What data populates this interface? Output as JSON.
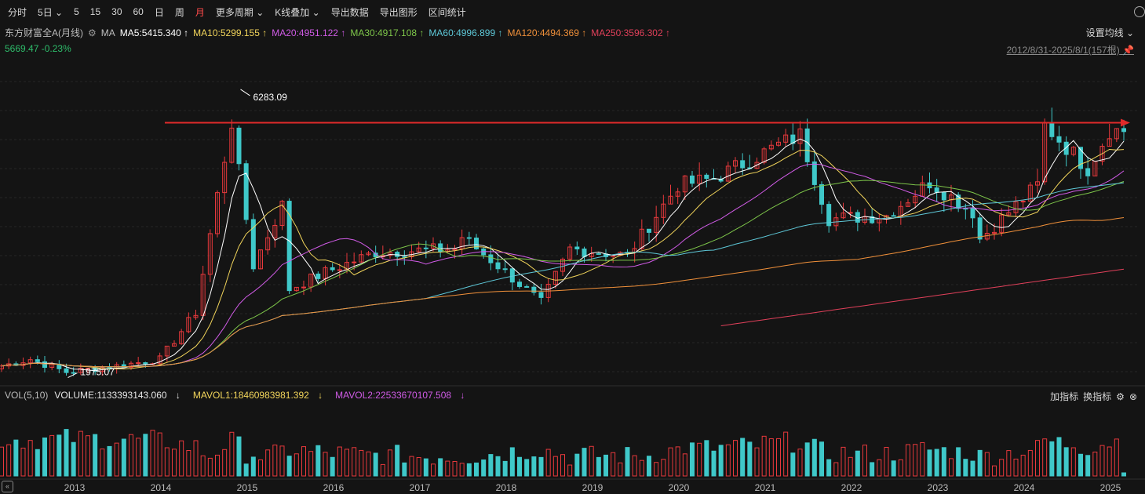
{
  "toolbar": {
    "items": [
      "分时",
      "5日",
      "5",
      "15",
      "30",
      "60",
      "日",
      "周",
      "月",
      "更多周期",
      "K线叠加",
      "导出数据",
      "导出图形",
      "区间统计"
    ],
    "active": "月"
  },
  "header": {
    "title": "东方财富全A(月线)",
    "indicator_name": "MA",
    "ma": [
      {
        "label": "MA5:5415.340",
        "arrow": "↑",
        "color": "#ffffff"
      },
      {
        "label": "MA10:5299.155",
        "arrow": "↑",
        "color": "#f2d55b"
      },
      {
        "label": "MA20:4951.122",
        "arrow": "↑",
        "color": "#d05be6"
      },
      {
        "label": "MA30:4917.108",
        "arrow": "↑",
        "color": "#7ec64a"
      },
      {
        "label": "MA60:4996.899",
        "arrow": "↑",
        "color": "#5ec8d8"
      },
      {
        "label": "MA120:4494.369",
        "arrow": "↑",
        "color": "#f0903a"
      },
      {
        "label": "MA250:3596.302",
        "arrow": "↑",
        "color": "#e0405a"
      }
    ],
    "price": "5669.47",
    "change": "-0.23%",
    "settings_label": "设置均线",
    "range_label": "2012/8/31-2025/8/1(157根)"
  },
  "volume_panel": {
    "title": "VOL(5,10)",
    "volume_label": "VOLUME:1133393143.060",
    "volume_arrow": "↓",
    "mavol1_label": "MAVOL1:18460983981.392",
    "mavol1_arrow": "↓",
    "mavol2_label": "MAVOL2:22533670107.508",
    "mavol2_arrow": "↓",
    "add_indicator": "加指标",
    "switch_indicator": "换指标"
  },
  "chart_data": {
    "type": "candlestick",
    "title": "东方财富全A(月线)",
    "years": [
      "2013",
      "2014",
      "2015",
      "2016",
      "2017",
      "2018",
      "2019",
      "2020",
      "2021",
      "2022",
      "2023",
      "2024",
      "2025"
    ],
    "annotations": [
      {
        "label": "6283.09",
        "type": "high",
        "value": 6283.09,
        "date": "2015-06"
      },
      {
        "label": "1975.07",
        "type": "low",
        "value": 1975.07,
        "date": "2013-06"
      }
    ],
    "resistance_line": {
      "value": 5785,
      "color": "#e02a2a"
    },
    "close_series_approx": [
      {
        "date": "2012-09",
        "close": 2150
      },
      {
        "date": "2013-01",
        "close": 2250
      },
      {
        "date": "2013-06",
        "close": 2060
      },
      {
        "date": "2014-01",
        "close": 2150
      },
      {
        "date": "2014-07",
        "close": 2250
      },
      {
        "date": "2014-12",
        "close": 2950
      },
      {
        "date": "2015-03",
        "close": 4700
      },
      {
        "date": "2015-05",
        "close": 5800
      },
      {
        "date": "2015-06",
        "close": 5050
      },
      {
        "date": "2015-08",
        "close": 3650
      },
      {
        "date": "2015-12",
        "close": 4550
      },
      {
        "date": "2016-01",
        "close": 3300
      },
      {
        "date": "2016-06",
        "close": 3550
      },
      {
        "date": "2017-01",
        "close": 3850
      },
      {
        "date": "2017-12",
        "close": 3900
      },
      {
        "date": "2018-01",
        "close": 4080
      },
      {
        "date": "2018-06",
        "close": 3650
      },
      {
        "date": "2018-12",
        "close": 3100
      },
      {
        "date": "2019-04",
        "close": 3900
      },
      {
        "date": "2019-12",
        "close": 3800
      },
      {
        "date": "2020-07",
        "close": 4850
      },
      {
        "date": "2020-12",
        "close": 4950
      },
      {
        "date": "2021-09",
        "close": 5450
      },
      {
        "date": "2021-12",
        "close": 5600
      },
      {
        "date": "2022-04",
        "close": 4350
      },
      {
        "date": "2022-12",
        "close": 4400
      },
      {
        "date": "2023-06",
        "close": 4900
      },
      {
        "date": "2023-12",
        "close": 4450
      },
      {
        "date": "2024-01",
        "close": 4050
      },
      {
        "date": "2024-09",
        "close": 4850
      },
      {
        "date": "2024-10",
        "close": 5750
      },
      {
        "date": "2025-04",
        "close": 5100
      },
      {
        "date": "2025-07",
        "close": 5680
      },
      {
        "date": "2025-08",
        "close": 5669.47
      }
    ],
    "ylim": [
      1900,
      6400
    ],
    "ma_latest": {
      "MA5": 5415.34,
      "MA10": 5299.155,
      "MA20": 4951.122,
      "MA30": 4917.108,
      "MA60": 4996.899,
      "MA120": 4494.369,
      "MA250": 3596.302
    },
    "volume_latest": {
      "VOLUME": 1133393143.06,
      "MAVOL1": 18460983981.392,
      "MAVOL2": 22533670107.508
    }
  }
}
